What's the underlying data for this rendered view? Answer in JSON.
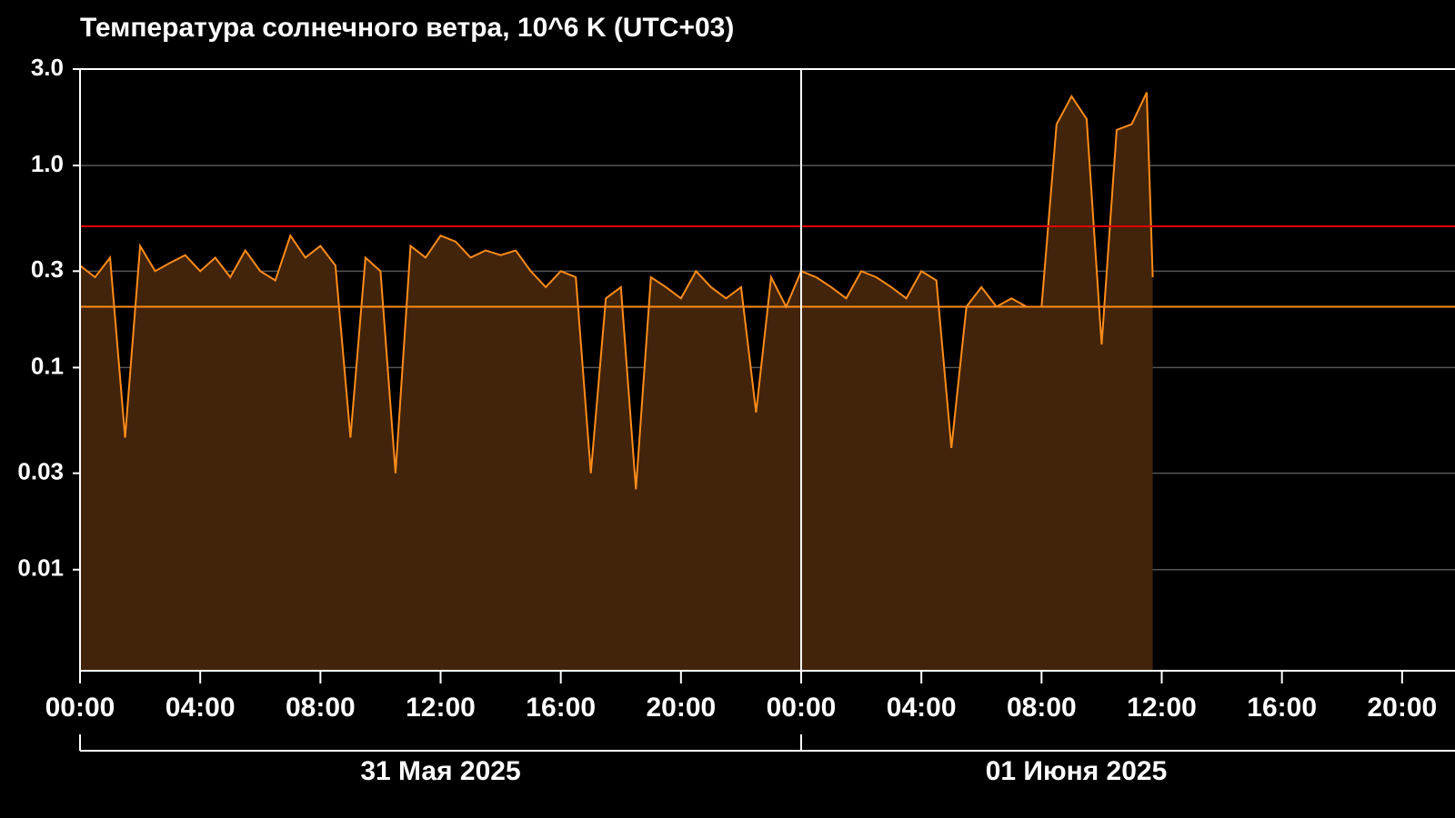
{
  "chart_data": {
    "type": "area-line",
    "title": "Температура солнечного ветра, 10^6 K (UTC+03)",
    "log_y": true,
    "grid": true,
    "background": "#000000",
    "x": [
      0,
      0.5,
      1,
      1.5,
      2,
      2.5,
      3,
      3.5,
      4,
      4.5,
      5,
      5.5,
      6,
      6.5,
      7,
      7.5,
      8,
      8.5,
      9,
      9.5,
      10,
      10.5,
      11,
      11.5,
      12,
      12.5,
      13,
      13.5,
      14,
      14.5,
      15,
      15.5,
      16,
      16.5,
      17,
      17.5,
      18,
      18.5,
      19,
      19.5,
      20,
      20.5,
      21,
      21.5,
      22,
      22.5,
      23,
      23.5,
      24,
      24.5,
      25,
      25.5,
      26,
      26.5,
      27,
      27.5,
      28,
      28.5,
      29,
      29.5,
      30,
      30.5,
      31,
      31.5,
      32,
      32.5,
      33,
      33.5,
      34,
      34.5,
      35,
      35.5,
      35.7
    ],
    "series": [
      {
        "color": "#ff8c1a",
        "fill_color": "#42240a",
        "values": [
          0.32,
          0.28,
          0.35,
          0.045,
          0.4,
          0.3,
          0.33,
          0.36,
          0.3,
          0.35,
          0.28,
          0.38,
          0.3,
          0.27,
          0.45,
          0.35,
          0.4,
          0.32,
          0.045,
          0.35,
          0.3,
          0.03,
          0.4,
          0.35,
          0.45,
          0.42,
          0.35,
          0.38,
          0.36,
          0.38,
          0.3,
          0.25,
          0.3,
          0.28,
          0.03,
          0.22,
          0.25,
          0.025,
          0.28,
          0.25,
          0.22,
          0.3,
          0.25,
          0.22,
          0.25,
          0.06,
          0.28,
          0.2,
          0.3,
          0.28,
          0.25,
          0.22,
          0.3,
          0.28,
          0.25,
          0.22,
          0.3,
          0.27,
          0.04,
          0.2,
          0.25,
          0.2,
          0.22,
          0.2,
          0.2,
          1.6,
          2.2,
          1.7,
          0.13,
          1.5,
          1.6,
          2.3,
          0.28
        ]
      }
    ],
    "xlim": [
      0,
      45.76
    ],
    "xticks": [
      {
        "value": 0,
        "label": "00:00"
      },
      {
        "value": 4,
        "label": "04:00"
      },
      {
        "value": 8,
        "label": "08:00"
      },
      {
        "value": 12,
        "label": "12:00"
      },
      {
        "value": 16,
        "label": "16:00"
      },
      {
        "value": 20,
        "label": "20:00"
      },
      {
        "value": 24,
        "label": "00:00"
      },
      {
        "value": 28,
        "label": "04:00"
      },
      {
        "value": 32,
        "label": "08:00"
      },
      {
        "value": 36,
        "label": "12:00"
      },
      {
        "value": 40,
        "label": "16:00"
      },
      {
        "value": 44,
        "label": "20:00"
      }
    ],
    "ylim": [
      0.00316,
      3.0
    ],
    "yticks": [
      0.01,
      0.03,
      0.1,
      0.3,
      {
        "value": 1.0,
        "label": "1.0"
      },
      {
        "value": 3.0,
        "label": "3.0"
      }
    ],
    "hlines": [
      {
        "value": 0.5,
        "color": "#e00000"
      },
      {
        "value": 0.2,
        "color": "#ff8c1a"
      }
    ],
    "x_groups": [
      {
        "label": "31 Мая 2025",
        "start": 0,
        "end": 24
      },
      {
        "label": "01 Июня 2025",
        "start": 24,
        "end": 48
      }
    ]
  }
}
